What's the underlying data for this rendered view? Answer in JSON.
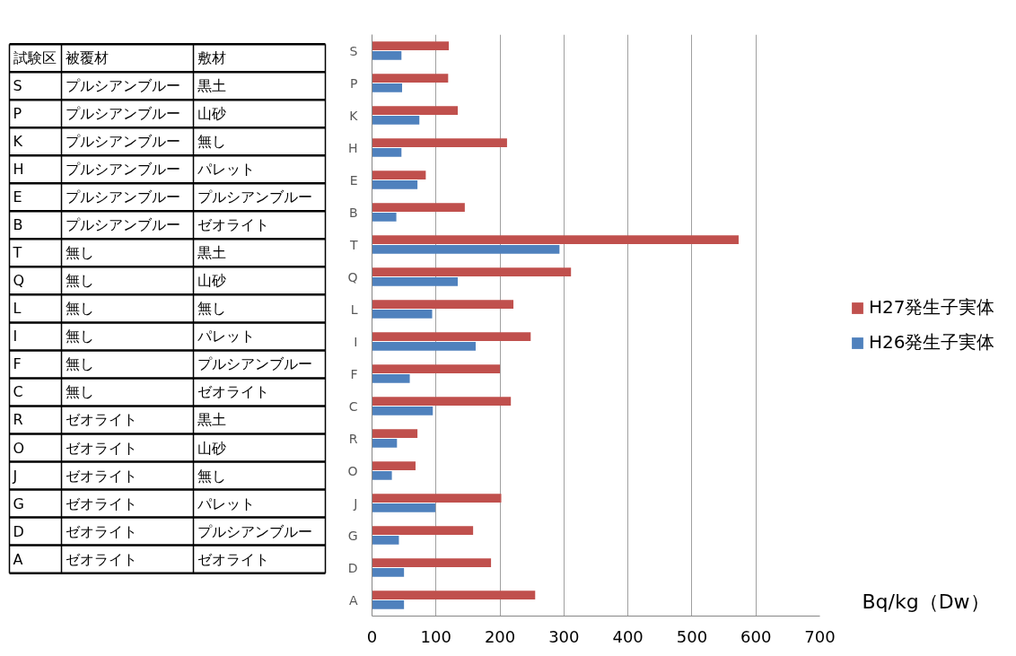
{
  "chart_data": [
    {
      "type": "other",
      "categories": [
        "試験区",
        "被覆材",
        "敷材"
      ],
      "cell_labels": [
        [
          "S",
          "プルシアンブルー",
          "黒土"
        ],
        [
          "P",
          "プルシアンブルー",
          "山砂"
        ],
        [
          "K",
          "プルシアンブルー",
          "無し"
        ],
        [
          "H",
          "プルシアンブルー",
          "パレット"
        ],
        [
          "E",
          "プルシアンブルー",
          "プルシアンブルー"
        ],
        [
          "B",
          "プルシアンブルー",
          "ゼオライト"
        ],
        [
          "T",
          "無し",
          "黒土"
        ],
        [
          "Q",
          "無し",
          "山砂"
        ],
        [
          "L",
          "無し",
          "無し"
        ],
        [
          "I",
          "無し",
          "パレット"
        ],
        [
          "F",
          "無し",
          "プルシアンブルー"
        ],
        [
          "C",
          "無し",
          "ゼオライト"
        ],
        [
          "R",
          "ゼオライト",
          "黒土"
        ],
        [
          "O",
          "ゼオライト",
          "山砂"
        ],
        [
          "J",
          "ゼオライト",
          "無し"
        ],
        [
          "G",
          "ゼオライト",
          "パレット"
        ],
        [
          "D",
          "ゼオライト",
          "プルシアンブルー"
        ],
        [
          "A",
          "ゼオライト",
          "ゼオライト"
        ]
      ]
    },
    {
      "type": "bar",
      "orientation": "horizontal",
      "categories": [
        "S",
        "P",
        "K",
        "H",
        "E",
        "B",
        "T",
        "Q",
        "L",
        "I",
        "F",
        "C",
        "R",
        "O",
        "J",
        "G",
        "D",
        "A"
      ],
      "series": [
        {
          "name": "H27発生子実体",
          "color": "#c0504d",
          "values": [
            120,
            119,
            134,
            211,
            84,
            145,
            573,
            311,
            221,
            248,
            200,
            217,
            71,
            68,
            202,
            158,
            186,
            255
          ]
        },
        {
          "name": "H26発生子実体",
          "color": "#4f81bd",
          "values": [
            46,
            47,
            74,
            46,
            71,
            38,
            293,
            134,
            94,
            162,
            59,
            95,
            39,
            31,
            99,
            42,
            50,
            50
          ]
        }
      ],
      "xlim": [
        0,
        700
      ],
      "xticks": [
        0,
        100,
        200,
        300,
        400,
        500,
        600,
        700
      ],
      "xlabel": "Bq/kg（Dw）",
      "grid": "x",
      "legend": "right"
    }
  ]
}
